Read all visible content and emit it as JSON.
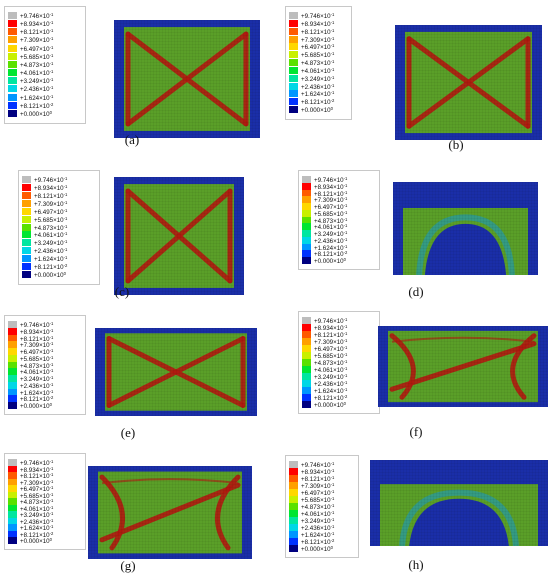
{
  "legend": {
    "entries": [
      {
        "mantissa": "+9.746",
        "exp": "-1",
        "color": "#bdbdbd"
      },
      {
        "mantissa": "+8.934",
        "exp": "-1",
        "color": "#ff0000"
      },
      {
        "mantissa": "+8.121",
        "exp": "-1",
        "color": "#ff5a00"
      },
      {
        "mantissa": "+7.309",
        "exp": "-1",
        "color": "#ffa000"
      },
      {
        "mantissa": "+6.497",
        "exp": "-1",
        "color": "#ffd700"
      },
      {
        "mantissa": "+5.685",
        "exp": "-1",
        "color": "#c8f000"
      },
      {
        "mantissa": "+4.873",
        "exp": "-1",
        "color": "#5ae100"
      },
      {
        "mantissa": "+4.061",
        "exp": "-1",
        "color": "#00e632"
      },
      {
        "mantissa": "+3.249",
        "exp": "-1",
        "color": "#00e6a0"
      },
      {
        "mantissa": "+2.436",
        "exp": "-1",
        "color": "#00d7e6"
      },
      {
        "mantissa": "+1.624",
        "exp": "-1",
        "color": "#0096ff"
      },
      {
        "mantissa": "+8.121",
        "exp": "-2",
        "color": "#0032ff"
      },
      {
        "mantissa": "+0.000",
        "exp": "0",
        "color": "#000080"
      }
    ]
  },
  "panels": [
    {
      "caption": "(a)",
      "pattern": "cross-x"
    },
    {
      "caption": "(b)",
      "pattern": "cross-x"
    },
    {
      "caption": "(c)",
      "pattern": "cross-x"
    },
    {
      "caption": "(d)",
      "pattern": "arch"
    },
    {
      "caption": "(e)",
      "pattern": "cross-x"
    },
    {
      "caption": "(f)",
      "pattern": "diagonal"
    },
    {
      "caption": "(g)",
      "pattern": "diagonal"
    },
    {
      "caption": "(h)",
      "pattern": "arch"
    }
  ],
  "colors": {
    "field_green": "#5a9f28",
    "band_red": "#b01a10",
    "edge_blue": "#1a2ea8",
    "deep_blue": "#102088",
    "teal": "#2a9a9a"
  }
}
